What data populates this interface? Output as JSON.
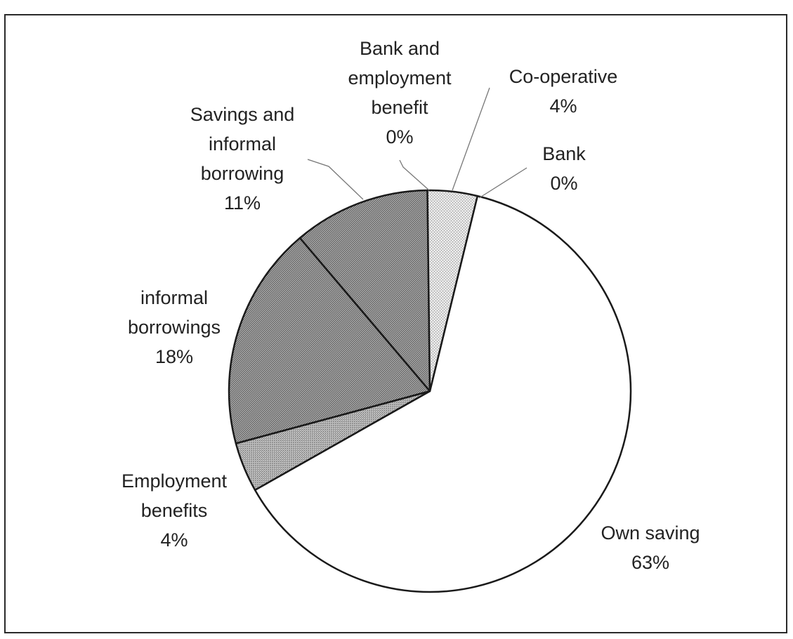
{
  "chart_data": {
    "type": "pie",
    "title": "",
    "slices": [
      {
        "name_lines": [
          "Bank"
        ],
        "value_label": "0%",
        "value": 0,
        "pattern": "none"
      },
      {
        "name_lines": [
          "Own saving"
        ],
        "value_label": "63%",
        "value": 63,
        "pattern": "white"
      },
      {
        "name_lines": [
          "Employment",
          "benefits"
        ],
        "value_label": "4%",
        "value": 4,
        "pattern": "medium"
      },
      {
        "name_lines": [
          "informal",
          "borrowings"
        ],
        "value_label": "18%",
        "value": 18,
        "pattern": "dark"
      },
      {
        "name_lines": [
          "Savings and",
          "informal",
          "borrowing"
        ],
        "value_label": "11%",
        "value": 11,
        "pattern": "dark"
      },
      {
        "name_lines": [
          "Bank and",
          "employment",
          "benefit"
        ],
        "value_label": "0%",
        "value": 0,
        "pattern": "none"
      },
      {
        "name_lines": [
          "Co-operative"
        ],
        "value_label": "4%",
        "value": 4,
        "pattern": "light"
      }
    ],
    "legend": "none",
    "data_labels": "outside"
  }
}
